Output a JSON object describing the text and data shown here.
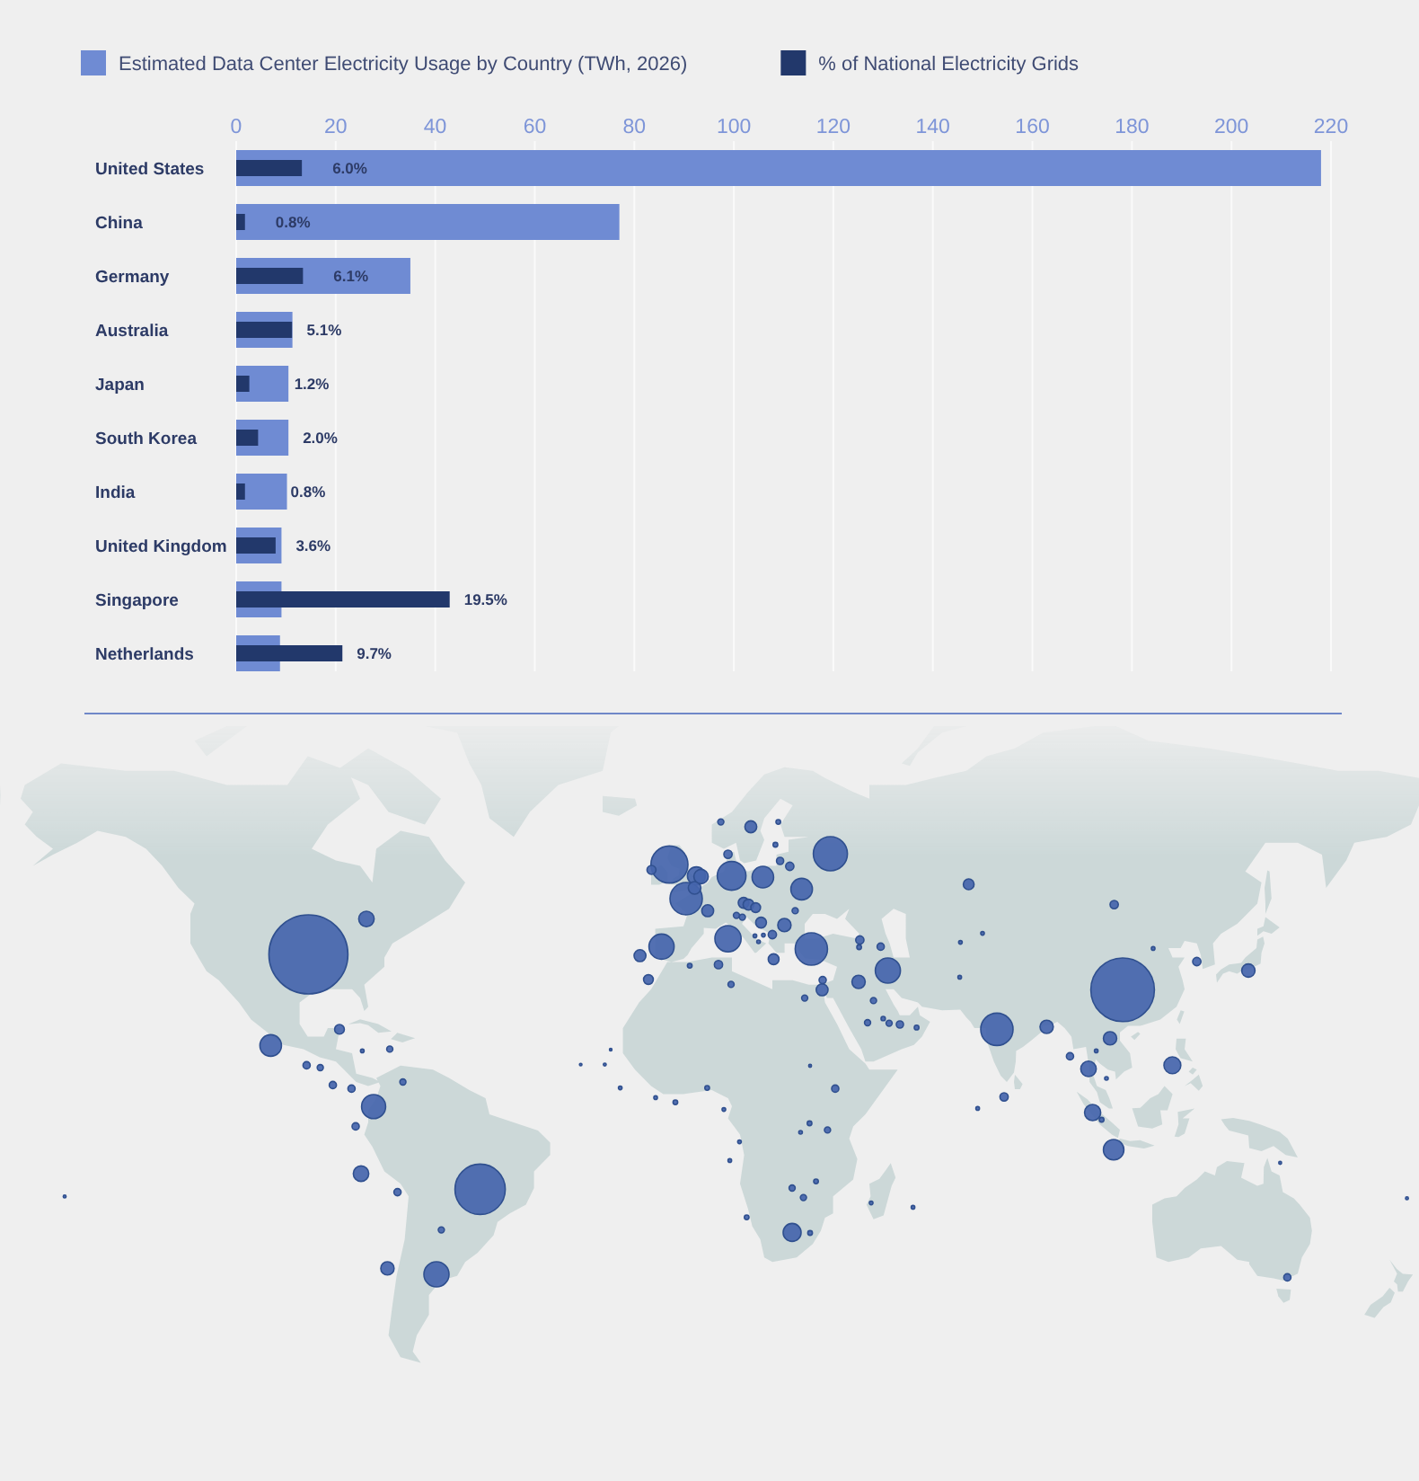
{
  "chart_data": [
    {
      "type": "bar",
      "orientation": "horizontal",
      "categories": [
        "United States",
        "China",
        "Germany",
        "Australia",
        "Japan",
        "South Korea",
        "India",
        "United Kingdom",
        "Singapore",
        "Netherlands"
      ],
      "series": [
        {
          "name": "Estimated Data Center Electricity Usage by Country (TWh, 2026)",
          "color": "#6f8bd3",
          "values": [
            218,
            77,
            35,
            11.3,
            10.5,
            10.5,
            10.2,
            9.1,
            9.1,
            8.8
          ]
        }
      ],
      "xlim": [
        0,
        220
      ],
      "xticks": [
        0,
        20,
        40,
        60,
        80,
        100,
        120,
        140,
        160,
        180,
        200,
        220
      ],
      "grid": "x",
      "legend": "top"
    },
    {
      "type": "bar",
      "orientation": "horizontal",
      "categories": [
        null,
        null,
        null,
        null,
        null,
        null,
        null,
        null,
        null,
        null
      ],
      "series": [
        {
          "name": "% of National Electricity Grids",
          "color": "#22386b",
          "values": [
            6.0,
            0.8,
            6.1,
            5.1,
            1.2,
            2.0,
            0.8,
            3.6,
            19.5,
            9.7
          ],
          "value_labels": [
            "6.0%",
            "0.8%",
            "6.1%",
            "5.1%",
            "1.2%",
            "2.0%",
            "0.8%",
            "3.6%",
            "19.5%",
            "9.7%"
          ]
        }
      ],
      "xlim": [
        0,
        100
      ],
      "legend": "top"
    }
  ]
}
